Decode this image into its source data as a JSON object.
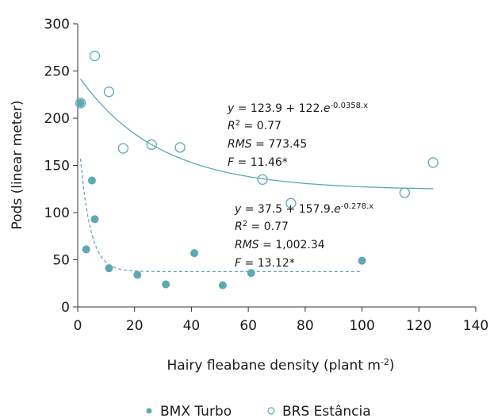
{
  "chart_data": {
    "type": "scatter",
    "xlabel": "Hairy fleabane density (plant m",
    "xlabel_sup": "-2",
    "xlabel_end": ")",
    "ylabel": "Pods (linear meter)",
    "xlim": [
      0,
      140
    ],
    "ylim": [
      0,
      300
    ],
    "xticks": [
      0,
      20,
      40,
      60,
      80,
      100,
      120,
      140
    ],
    "yticks": [
      0,
      50,
      100,
      150,
      200,
      250,
      300
    ],
    "grid": false,
    "legend_position": "bottom",
    "colors": {
      "marker": "#5ea8b4",
      "curve": "#5ea8b4"
    },
    "series": [
      {
        "name": "BMX Turbo",
        "marker": "filled-circle",
        "points": [
          [
            1,
            216
          ],
          [
            3,
            61
          ],
          [
            5,
            134
          ],
          [
            6,
            93
          ],
          [
            11,
            41
          ],
          [
            21,
            34
          ],
          [
            31,
            24
          ],
          [
            41,
            57
          ],
          [
            51,
            23
          ],
          [
            61,
            36
          ],
          [
            100,
            49
          ]
        ],
        "fit": {
          "a": 37.5,
          "b": 157.9,
          "k": 0.278,
          "x_range": [
            1,
            100
          ],
          "style": "dashed"
        },
        "equation": {
          "y_part": "y",
          "rhs": " = 37.5 + 157.9.",
          "e": "e",
          "exp": "-0.278.x",
          "r2_label": "R",
          "r2_sup": "2",
          "r2_value": " = 0.77",
          "rms_label": "RMS",
          "rms_value": " = 1,002.34",
          "f_label": "F",
          "f_value": " = 13.12*"
        }
      },
      {
        "name": "BRS Estância",
        "marker": "open-circle",
        "points": [
          [
            1,
            216
          ],
          [
            6,
            266
          ],
          [
            11,
            228
          ],
          [
            16,
            168
          ],
          [
            26,
            172
          ],
          [
            36,
            169
          ],
          [
            65,
            135
          ],
          [
            75,
            110
          ],
          [
            115,
            121
          ],
          [
            125,
            153
          ]
        ],
        "fit": {
          "a": 123.9,
          "b": 122,
          "k": 0.0358,
          "x_range": [
            1,
            125
          ],
          "style": "solid"
        },
        "equation": {
          "y_part": "y",
          "rhs": " = 123.9 + 122.",
          "e": "e",
          "exp": "-0.0358.x",
          "r2_label": "R",
          "r2_sup": "2",
          "r2_value": " = 0.77",
          "rms_label": "RMS",
          "rms_value": " = 773.45",
          "f_label": "F",
          "f_value": " = 11.46*"
        }
      }
    ]
  }
}
